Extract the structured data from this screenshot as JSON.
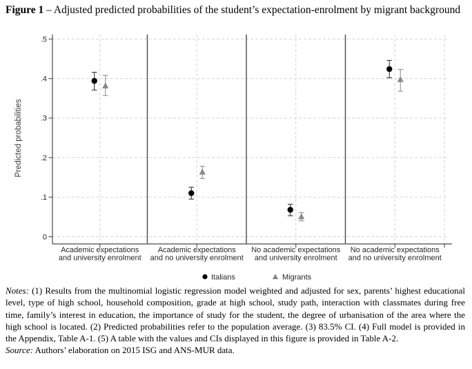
{
  "figure": {
    "label": "Figure 1",
    "dash": "–",
    "title": "Adjusted predicted probabilities of the student’s expectation-enrolment by migrant background"
  },
  "chart_data": {
    "type": "scatter",
    "title": "",
    "xlabel": "",
    "ylabel": "Predicted probabilities",
    "ylim": [
      0,
      0.5
    ],
    "yticks": {
      "values": [
        0,
        0.1,
        0.2,
        0.3,
        0.4,
        0.5
      ],
      "labels": [
        "0",
        ".1",
        ".2",
        ".3",
        ".4",
        ".5"
      ]
    },
    "grid": true,
    "panel_separators": true,
    "legend_position": "bottom-center",
    "categories": [
      "Academic expectations and university enrolment",
      "Academic expectations and no university enrolment",
      "No academic expectations and university enrolment",
      "No academic expectations and no university enrolment"
    ],
    "category_label_lines": [
      [
        "Academic expectations",
        "and university enrolment"
      ],
      [
        "Academic expectations",
        "and no university enrolment"
      ],
      [
        "No academic expectations",
        "and university enrolment"
      ],
      [
        "No academic expectations",
        "and no university enrolment"
      ]
    ],
    "series": [
      {
        "name": "Italians",
        "marker": "circle",
        "color": "#000000",
        "error_color": "#333333",
        "values": [
          0.394,
          0.11,
          0.068,
          0.424
        ],
        "ci_low": [
          0.371,
          0.095,
          0.053,
          0.402
        ],
        "ci_high": [
          0.416,
          0.125,
          0.082,
          0.446
        ]
      },
      {
        "name": "Migrants",
        "marker": "triangle",
        "color": "#8a8a8a",
        "error_color": "#8f8f8f",
        "values": [
          0.382,
          0.164,
          0.051,
          0.398
        ],
        "ci_low": [
          0.357,
          0.147,
          0.04,
          0.368
        ],
        "ci_high": [
          0.408,
          0.178,
          0.061,
          0.423
        ]
      }
    ],
    "ci_level": "83.5% CI"
  },
  "notes": {
    "label": "Notes:",
    "text": " (1) Results from the multinomial logistic regression model weighted and adjusted for sex, parents’ highest educational level, type of high school, household composition, grade at high school, study path, interaction with classmates during free time, family’s interest in education, the importance of study for the student, the degree of urbanisation of the area where the high school is located. (2) Predicted probabilities refer to the population average. (3) 83.5% CI. (4) Full model is provided in the Appendix, Table A-1. (5) A table with the values and CIs displayed in this figure is provided in Table A-2."
  },
  "source": {
    "label": "Source:",
    "text": " Authors’ elaboration on 2015 ISG and ANS-MUR data."
  },
  "colors": {
    "grid": "#d4d4d4",
    "axis": "#4a4a4a",
    "tick_text": "#262626"
  }
}
